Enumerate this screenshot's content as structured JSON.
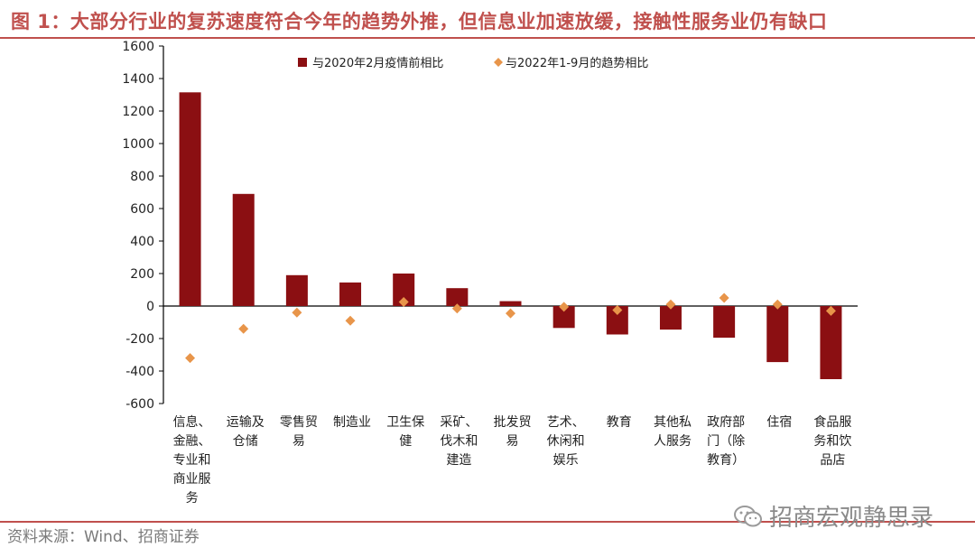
{
  "header": {
    "title": "图 1：大部分行业的复苏速度符合今年的趋势外推，但信息业加速放缓，接触性服务业仍有缺口"
  },
  "footer": {
    "source": "资料来源：Wind、招商证券",
    "watermark": "招商宏观静思录",
    "watermark_icon": "wechat-icon"
  },
  "colors": {
    "accent": "#c0504d",
    "bar": "#8b0f12",
    "marker": "#e8954a"
  },
  "chart_data": {
    "type": "bar",
    "title": "",
    "xlabel": "",
    "ylabel": "",
    "ylim": [
      -600,
      1600
    ],
    "yticks": [
      1600,
      1400,
      1200,
      1000,
      800,
      600,
      400,
      200,
      0,
      -200,
      -400,
      -600
    ],
    "legend_position": "top-center",
    "categories": [
      "信息、金融、专业和商业服务",
      "运输及仓储",
      "零售贸易",
      "制造业",
      "卫生保健",
      "采矿、伐木和建造",
      "批发贸易",
      "艺术、休闲和娱乐",
      "教育",
      "其他私人服务",
      "政府部门（除教育）",
      "住宿",
      "食品服务和饮品店"
    ],
    "category_label_lines": [
      [
        "信息、",
        "金融、",
        "专业和",
        "商业服",
        "务"
      ],
      [
        "运输及",
        "仓储"
      ],
      [
        "零售贸",
        "易"
      ],
      [
        "制造业"
      ],
      [
        "卫生保",
        "健"
      ],
      [
        "采矿、",
        "伐木和",
        "建造"
      ],
      [
        "批发贸",
        "易"
      ],
      [
        "艺术、",
        "休闲和",
        "娱乐"
      ],
      [
        "教育"
      ],
      [
        "其他私",
        "人服务"
      ],
      [
        "政府部",
        "门（除",
        "教育）"
      ],
      [
        "住宿"
      ],
      [
        "食品服",
        "务和饮",
        "品店"
      ]
    ],
    "series": [
      {
        "name": "与2020年2月疫情前相比",
        "kind": "bar",
        "values": [
          1315,
          690,
          190,
          145,
          200,
          110,
          30,
          -135,
          -175,
          -145,
          -195,
          -345,
          -450
        ]
      },
      {
        "name": "与2022年1-9月的趋势相比",
        "kind": "marker",
        "values": [
          -320,
          -140,
          -40,
          -90,
          25,
          -15,
          -45,
          -5,
          -25,
          10,
          50,
          10,
          -30
        ]
      }
    ]
  }
}
